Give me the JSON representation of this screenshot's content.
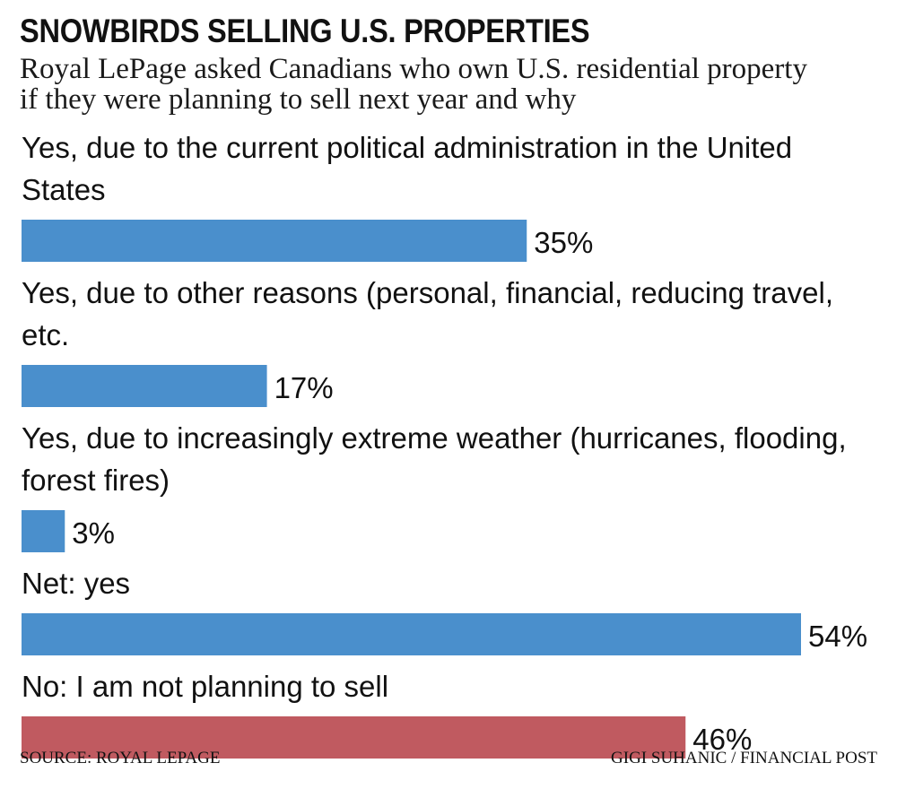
{
  "title": "SNOWBIRDS SELLING U.S. PROPERTIES",
  "subtitle": "Royal LePage asked Canadians who own U.S. residential property if they were planning to sell next year and why",
  "source": "SOURCE: ROYAL LEPAGE",
  "credit": "GIGI SUHANIC / FINANCIAL POST",
  "colors": {
    "yes": "#4a8fcc",
    "no": "#c05a60"
  },
  "chart_data": {
    "type": "bar",
    "orientation": "horizontal",
    "title": "SNOWBIRDS SELLING U.S. PROPERTIES",
    "categories": [
      [
        "Yes, due to the current political administration in the United",
        "States"
      ],
      [
        "Yes, due to other reasons (personal, financial, reducing travel,",
        "etc."
      ],
      [
        "Yes, due to increasingly extreme weather (hurricanes, flooding,",
        "forest fires)"
      ],
      [
        "Net: yes"
      ],
      [
        "No: I am not planning to sell"
      ]
    ],
    "values": [
      35,
      17,
      3,
      54,
      46
    ],
    "value_labels": [
      "35%",
      "17%",
      "3%",
      "54%",
      "46%"
    ],
    "bar_colors": [
      "#4a8fcc",
      "#4a8fcc",
      "#4a8fcc",
      "#4a8fcc",
      "#c05a60"
    ],
    "xlim": [
      0,
      54
    ],
    "grid": false,
    "legend": "none"
  }
}
